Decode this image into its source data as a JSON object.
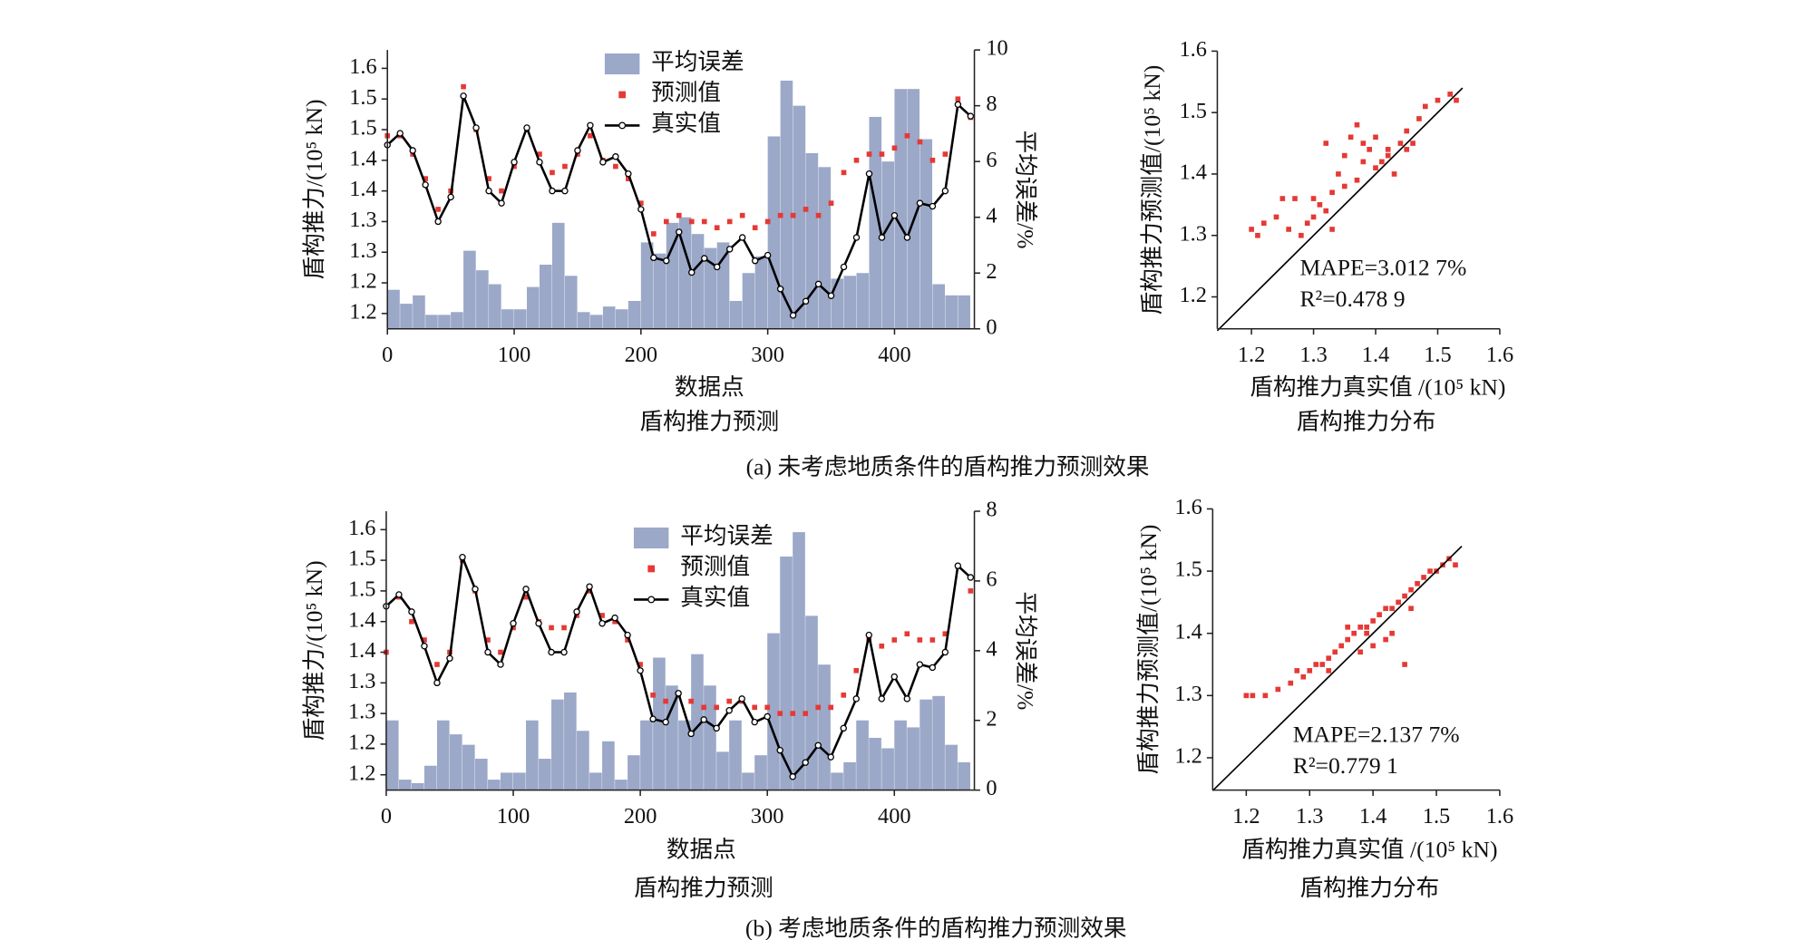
{
  "chart_data": [
    {
      "type": "combo",
      "xlabel": "数据点",
      "subtitle": "盾构推力预测",
      "ylabel": "盾构推力/(10⁵ kN)",
      "y2label": "平均误差/%",
      "xlim": [
        0,
        463
      ],
      "xticks": [
        0,
        100,
        200,
        300,
        400
      ],
      "ylim": [
        1.175,
        1.63
      ],
      "yticks": [
        1.2,
        {
          "value": 1.25,
          "label": "1.2"
        },
        1.3,
        {
          "value": 1.35,
          "label": "1.3"
        },
        1.4,
        {
          "value": 1.45,
          "label": "1.4"
        },
        1.5,
        {
          "value": 1.55,
          "label": "1.5"
        },
        1.6
      ],
      "y2lim": [
        0,
        10
      ],
      "y2ticks": [
        0,
        2,
        4,
        6,
        8,
        10
      ],
      "legend": "top-center",
      "x": [
        0,
        10,
        20,
        30,
        40,
        50,
        60,
        70,
        80,
        90,
        100,
        110,
        120,
        130,
        140,
        150,
        160,
        170,
        180,
        190,
        200,
        210,
        220,
        230,
        240,
        250,
        260,
        270,
        280,
        290,
        300,
        310,
        320,
        330,
        340,
        350,
        360,
        370,
        380,
        390,
        400,
        410,
        420,
        430,
        440,
        450,
        460
      ],
      "series": [
        {
          "name": "平均误差",
          "kind": "bar",
          "axis": "y2",
          "color": "#9ba8c8",
          "x": [
            0,
            10,
            20,
            30,
            40,
            50,
            60,
            70,
            80,
            90,
            100,
            110,
            120,
            130,
            140,
            150,
            160,
            170,
            180,
            190,
            200,
            210,
            220,
            230,
            240,
            250,
            260,
            270,
            280,
            290,
            300,
            310,
            320,
            330,
            340,
            350,
            360,
            370,
            380,
            390,
            400,
            410,
            420,
            430,
            440,
            450
          ],
          "values": [
            1.4,
            0.9,
            1.2,
            0.5,
            0.5,
            0.6,
            2.8,
            2.1,
            1.6,
            0.7,
            0.7,
            1.5,
            2.3,
            3.8,
            1.9,
            0.6,
            0.5,
            0.8,
            0.7,
            1.0,
            3.1,
            2.7,
            3.8,
            4.0,
            3.4,
            2.9,
            3.1,
            1.0,
            2.0,
            2.6,
            6.9,
            8.9,
            8.0,
            6.3,
            5.8,
            1.8,
            1.9,
            2.0,
            7.6,
            6.0,
            8.6,
            8.6,
            6.8,
            1.6,
            1.2,
            1.2
          ]
        },
        {
          "name": "预测值",
          "kind": "scatter",
          "color": "#e53935",
          "values": [
            1.49,
            1.49,
            1.46,
            1.42,
            1.37,
            1.4,
            1.57,
            1.5,
            1.42,
            1.4,
            1.44,
            1.5,
            1.46,
            1.43,
            1.44,
            1.46,
            1.49,
            1.45,
            1.44,
            1.42,
            1.38,
            1.33,
            1.35,
            1.36,
            1.35,
            1.35,
            1.34,
            1.35,
            1.36,
            1.34,
            1.35,
            1.36,
            1.36,
            1.37,
            1.36,
            1.38,
            1.43,
            1.45,
            1.46,
            1.46,
            1.47,
            1.49,
            1.48,
            1.45,
            1.46,
            1.55,
            1.52
          ]
        },
        {
          "name": "真实值",
          "kind": "line",
          "color": "#000000",
          "values": [
            1.475,
            1.494,
            1.466,
            1.41,
            1.35,
            1.39,
            1.555,
            1.503,
            1.4,
            1.38,
            1.447,
            1.503,
            1.447,
            1.4,
            1.4,
            1.466,
            1.507,
            1.447,
            1.456,
            1.428,
            1.37,
            1.291,
            1.286,
            1.333,
            1.267,
            1.29,
            1.276,
            1.305,
            1.324,
            1.286,
            1.295,
            1.24,
            1.197,
            1.22,
            1.248,
            1.229,
            1.276,
            1.324,
            1.428,
            1.324,
            1.36,
            1.324,
            1.38,
            1.375,
            1.4,
            1.541,
            1.522
          ]
        }
      ]
    },
    {
      "type": "scatter",
      "xlabel": "盾构推力真实值 /(10⁵ kN)",
      "subtitle": "盾构推力分布",
      "ylabel": "盾构推力预测值/(10⁵ kN)",
      "xlim": [
        1.145,
        1.6
      ],
      "xticks": [
        1.2,
        1.3,
        1.4,
        1.5,
        1.6
      ],
      "ylim": [
        1.148,
        1.6
      ],
      "yticks": [
        1.2,
        1.3,
        1.4,
        1.5,
        1.6
      ],
      "annotations": [
        "MAPE=3.012 7%",
        "R²=0.478 9"
      ],
      "series": [
        {
          "kind": "scatter",
          "color": "#e53935",
          "x": [
            1.2,
            1.21,
            1.22,
            1.24,
            1.25,
            1.27,
            1.26,
            1.28,
            1.29,
            1.3,
            1.31,
            1.32,
            1.33,
            1.34,
            1.35,
            1.36,
            1.37,
            1.38,
            1.39,
            1.4,
            1.41,
            1.42,
            1.43,
            1.44,
            1.45,
            1.46,
            1.47,
            1.48,
            1.5,
            1.52,
            1.53,
            1.35,
            1.37,
            1.4,
            1.42,
            1.3,
            1.33,
            1.38,
            1.45,
            1.32
          ],
          "values": [
            1.31,
            1.3,
            1.32,
            1.33,
            1.36,
            1.36,
            1.31,
            1.3,
            1.32,
            1.33,
            1.35,
            1.34,
            1.37,
            1.4,
            1.43,
            1.46,
            1.48,
            1.45,
            1.44,
            1.46,
            1.42,
            1.44,
            1.4,
            1.45,
            1.47,
            1.45,
            1.49,
            1.51,
            1.52,
            1.53,
            1.52,
            1.38,
            1.39,
            1.41,
            1.43,
            1.36,
            1.31,
            1.42,
            1.44,
            1.45
          ]
        },
        {
          "kind": "line",
          "color": "#000000",
          "x": [
            1.145,
            1.54
          ],
          "values": [
            1.145,
            1.54
          ]
        }
      ]
    },
    {
      "type": "combo",
      "xlabel": "数据点",
      "subtitle": "盾构推力预测",
      "ylabel": "盾构推力/(10⁵ kN)",
      "y2label": "平均误差/%",
      "xlim": [
        0,
        463
      ],
      "xticks": [
        0,
        100,
        200,
        300,
        400
      ],
      "ylim": [
        1.175,
        1.63
      ],
      "yticks": [
        1.2,
        {
          "value": 1.25,
          "label": "1.2"
        },
        1.3,
        {
          "value": 1.35,
          "label": "1.3"
        },
        1.4,
        {
          "value": 1.45,
          "label": "1.4"
        },
        1.5,
        {
          "value": 1.55,
          "label": "1.5"
        },
        1.6
      ],
      "y2lim": [
        0,
        8
      ],
      "y2ticks": [
        0,
        2,
        4,
        6,
        8
      ],
      "legend": "top-center",
      "x": [
        0,
        10,
        20,
        30,
        40,
        50,
        60,
        70,
        80,
        90,
        100,
        110,
        120,
        130,
        140,
        150,
        160,
        170,
        180,
        190,
        200,
        210,
        220,
        230,
        240,
        250,
        260,
        270,
        280,
        290,
        300,
        310,
        320,
        330,
        340,
        350,
        360,
        370,
        380,
        390,
        400,
        410,
        420,
        430,
        440,
        450,
        460
      ],
      "series": [
        {
          "name": "平均误差",
          "kind": "bar",
          "axis": "y2",
          "color": "#9ba8c8",
          "x": [
            0,
            10,
            20,
            30,
            40,
            50,
            60,
            70,
            80,
            90,
            100,
            110,
            120,
            130,
            140,
            150,
            160,
            170,
            180,
            190,
            200,
            210,
            220,
            230,
            240,
            250,
            260,
            270,
            280,
            290,
            300,
            310,
            320,
            330,
            340,
            350,
            360,
            370,
            380,
            390,
            400,
            410,
            420,
            430,
            440,
            450
          ],
          "values": [
            2.0,
            0.3,
            0.2,
            0.7,
            2.0,
            1.6,
            1.3,
            0.9,
            0.3,
            0.5,
            0.5,
            2.0,
            0.9,
            2.6,
            2.8,
            1.7,
            0.5,
            1.4,
            0.3,
            1.0,
            2.0,
            3.8,
            3.0,
            2.0,
            3.9,
            3.0,
            1.1,
            2.0,
            0.5,
            1.0,
            4.5,
            6.7,
            7.4,
            5.0,
            3.6,
            0.5,
            0.8,
            2.0,
            1.5,
            1.2,
            2.0,
            1.8,
            2.6,
            2.7,
            1.3,
            0.8
          ]
        },
        {
          "name": "预测值",
          "kind": "scatter",
          "color": "#e53935",
          "values": [
            1.4,
            1.49,
            1.45,
            1.42,
            1.38,
            1.4,
            1.55,
            1.5,
            1.42,
            1.4,
            1.44,
            1.49,
            1.45,
            1.44,
            1.44,
            1.46,
            1.5,
            1.46,
            1.45,
            1.42,
            1.38,
            1.33,
            1.32,
            1.33,
            1.32,
            1.31,
            1.31,
            1.32,
            1.32,
            1.31,
            1.31,
            1.3,
            1.3,
            1.3,
            1.31,
            1.31,
            1.33,
            1.37,
            1.42,
            1.41,
            1.42,
            1.43,
            1.42,
            1.42,
            1.43,
            1.54,
            1.5
          ]
        },
        {
          "name": "真实值",
          "kind": "line",
          "color": "#000000",
          "values": [
            1.475,
            1.494,
            1.466,
            1.41,
            1.35,
            1.39,
            1.555,
            1.503,
            1.4,
            1.38,
            1.447,
            1.503,
            1.447,
            1.4,
            1.4,
            1.466,
            1.507,
            1.447,
            1.456,
            1.428,
            1.37,
            1.291,
            1.286,
            1.333,
            1.267,
            1.29,
            1.276,
            1.305,
            1.324,
            1.286,
            1.295,
            1.24,
            1.197,
            1.22,
            1.248,
            1.229,
            1.276,
            1.324,
            1.428,
            1.324,
            1.36,
            1.324,
            1.38,
            1.375,
            1.4,
            1.541,
            1.522
          ]
        }
      ]
    },
    {
      "type": "scatter",
      "xlabel": "盾构推力真实值 /(10⁵ kN)",
      "subtitle": "盾构推力分布",
      "ylabel": "盾构推力预测值/(10⁵ kN)",
      "xlim": [
        1.147,
        1.6
      ],
      "xticks": [
        1.2,
        1.3,
        1.4,
        1.5,
        1.6
      ],
      "ylim": [
        1.148,
        1.6
      ],
      "yticks": [
        1.2,
        1.3,
        1.4,
        1.5,
        1.6
      ],
      "annotations": [
        "MAPE=2.137 7%",
        "R²=0.779 1"
      ],
      "series": [
        {
          "kind": "scatter",
          "color": "#e53935",
          "x": [
            1.2,
            1.21,
            1.23,
            1.25,
            1.27,
            1.29,
            1.3,
            1.31,
            1.32,
            1.33,
            1.34,
            1.35,
            1.36,
            1.37,
            1.38,
            1.39,
            1.4,
            1.41,
            1.42,
            1.43,
            1.44,
            1.45,
            1.46,
            1.47,
            1.48,
            1.49,
            1.5,
            1.51,
            1.52,
            1.53,
            1.36,
            1.38,
            1.4,
            1.43,
            1.45,
            1.28,
            1.33,
            1.42,
            1.46,
            1.39
          ],
          "values": [
            1.3,
            1.3,
            1.3,
            1.31,
            1.32,
            1.33,
            1.34,
            1.35,
            1.35,
            1.36,
            1.37,
            1.38,
            1.39,
            1.4,
            1.41,
            1.41,
            1.42,
            1.43,
            1.44,
            1.44,
            1.45,
            1.46,
            1.47,
            1.48,
            1.49,
            1.5,
            1.5,
            1.51,
            1.52,
            1.51,
            1.41,
            1.37,
            1.38,
            1.4,
            1.35,
            1.34,
            1.34,
            1.39,
            1.44,
            1.4
          ]
        },
        {
          "kind": "line",
          "color": "#000000",
          "x": [
            1.147,
            1.54
          ],
          "values": [
            1.147,
            1.54
          ]
        }
      ]
    }
  ],
  "captions": [
    "(a) 未考虑地质条件的盾构推力预测效果",
    "(b) 考虑地质条件的盾构推力预测效果"
  ]
}
